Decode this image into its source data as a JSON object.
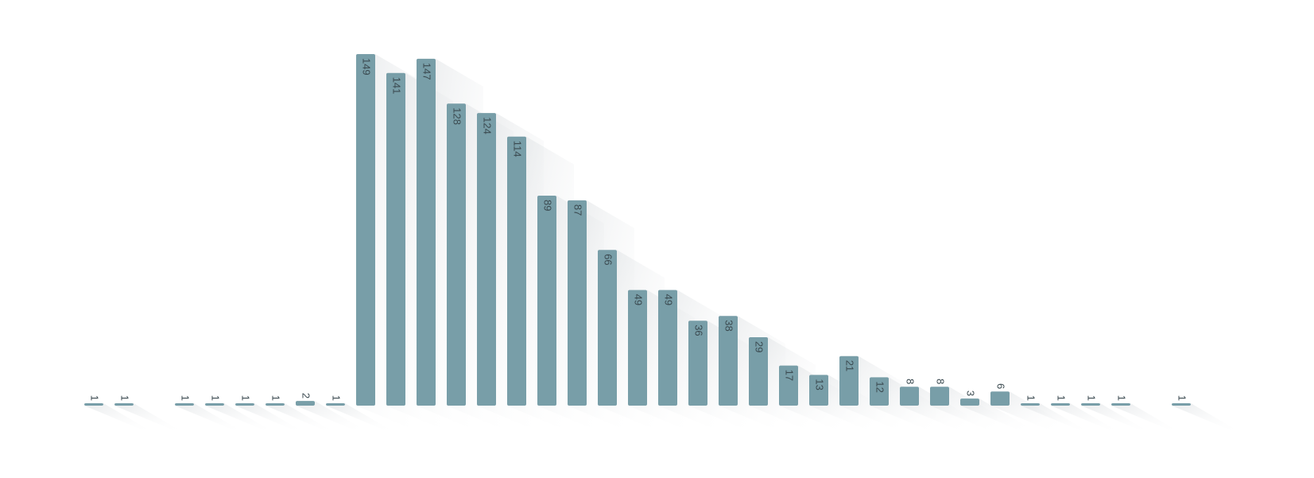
{
  "chart_data": {
    "type": "bar",
    "values": [
      1,
      1,
      null,
      1,
      1,
      1,
      1,
      2,
      1,
      149,
      141,
      147,
      128,
      124,
      114,
      89,
      87,
      66,
      49,
      49,
      36,
      38,
      29,
      17,
      13,
      21,
      12,
      8,
      8,
      3,
      6,
      1,
      1,
      1,
      1,
      null,
      1
    ],
    "color": "#789ea8",
    "ylim": [
      0,
      150
    ]
  }
}
